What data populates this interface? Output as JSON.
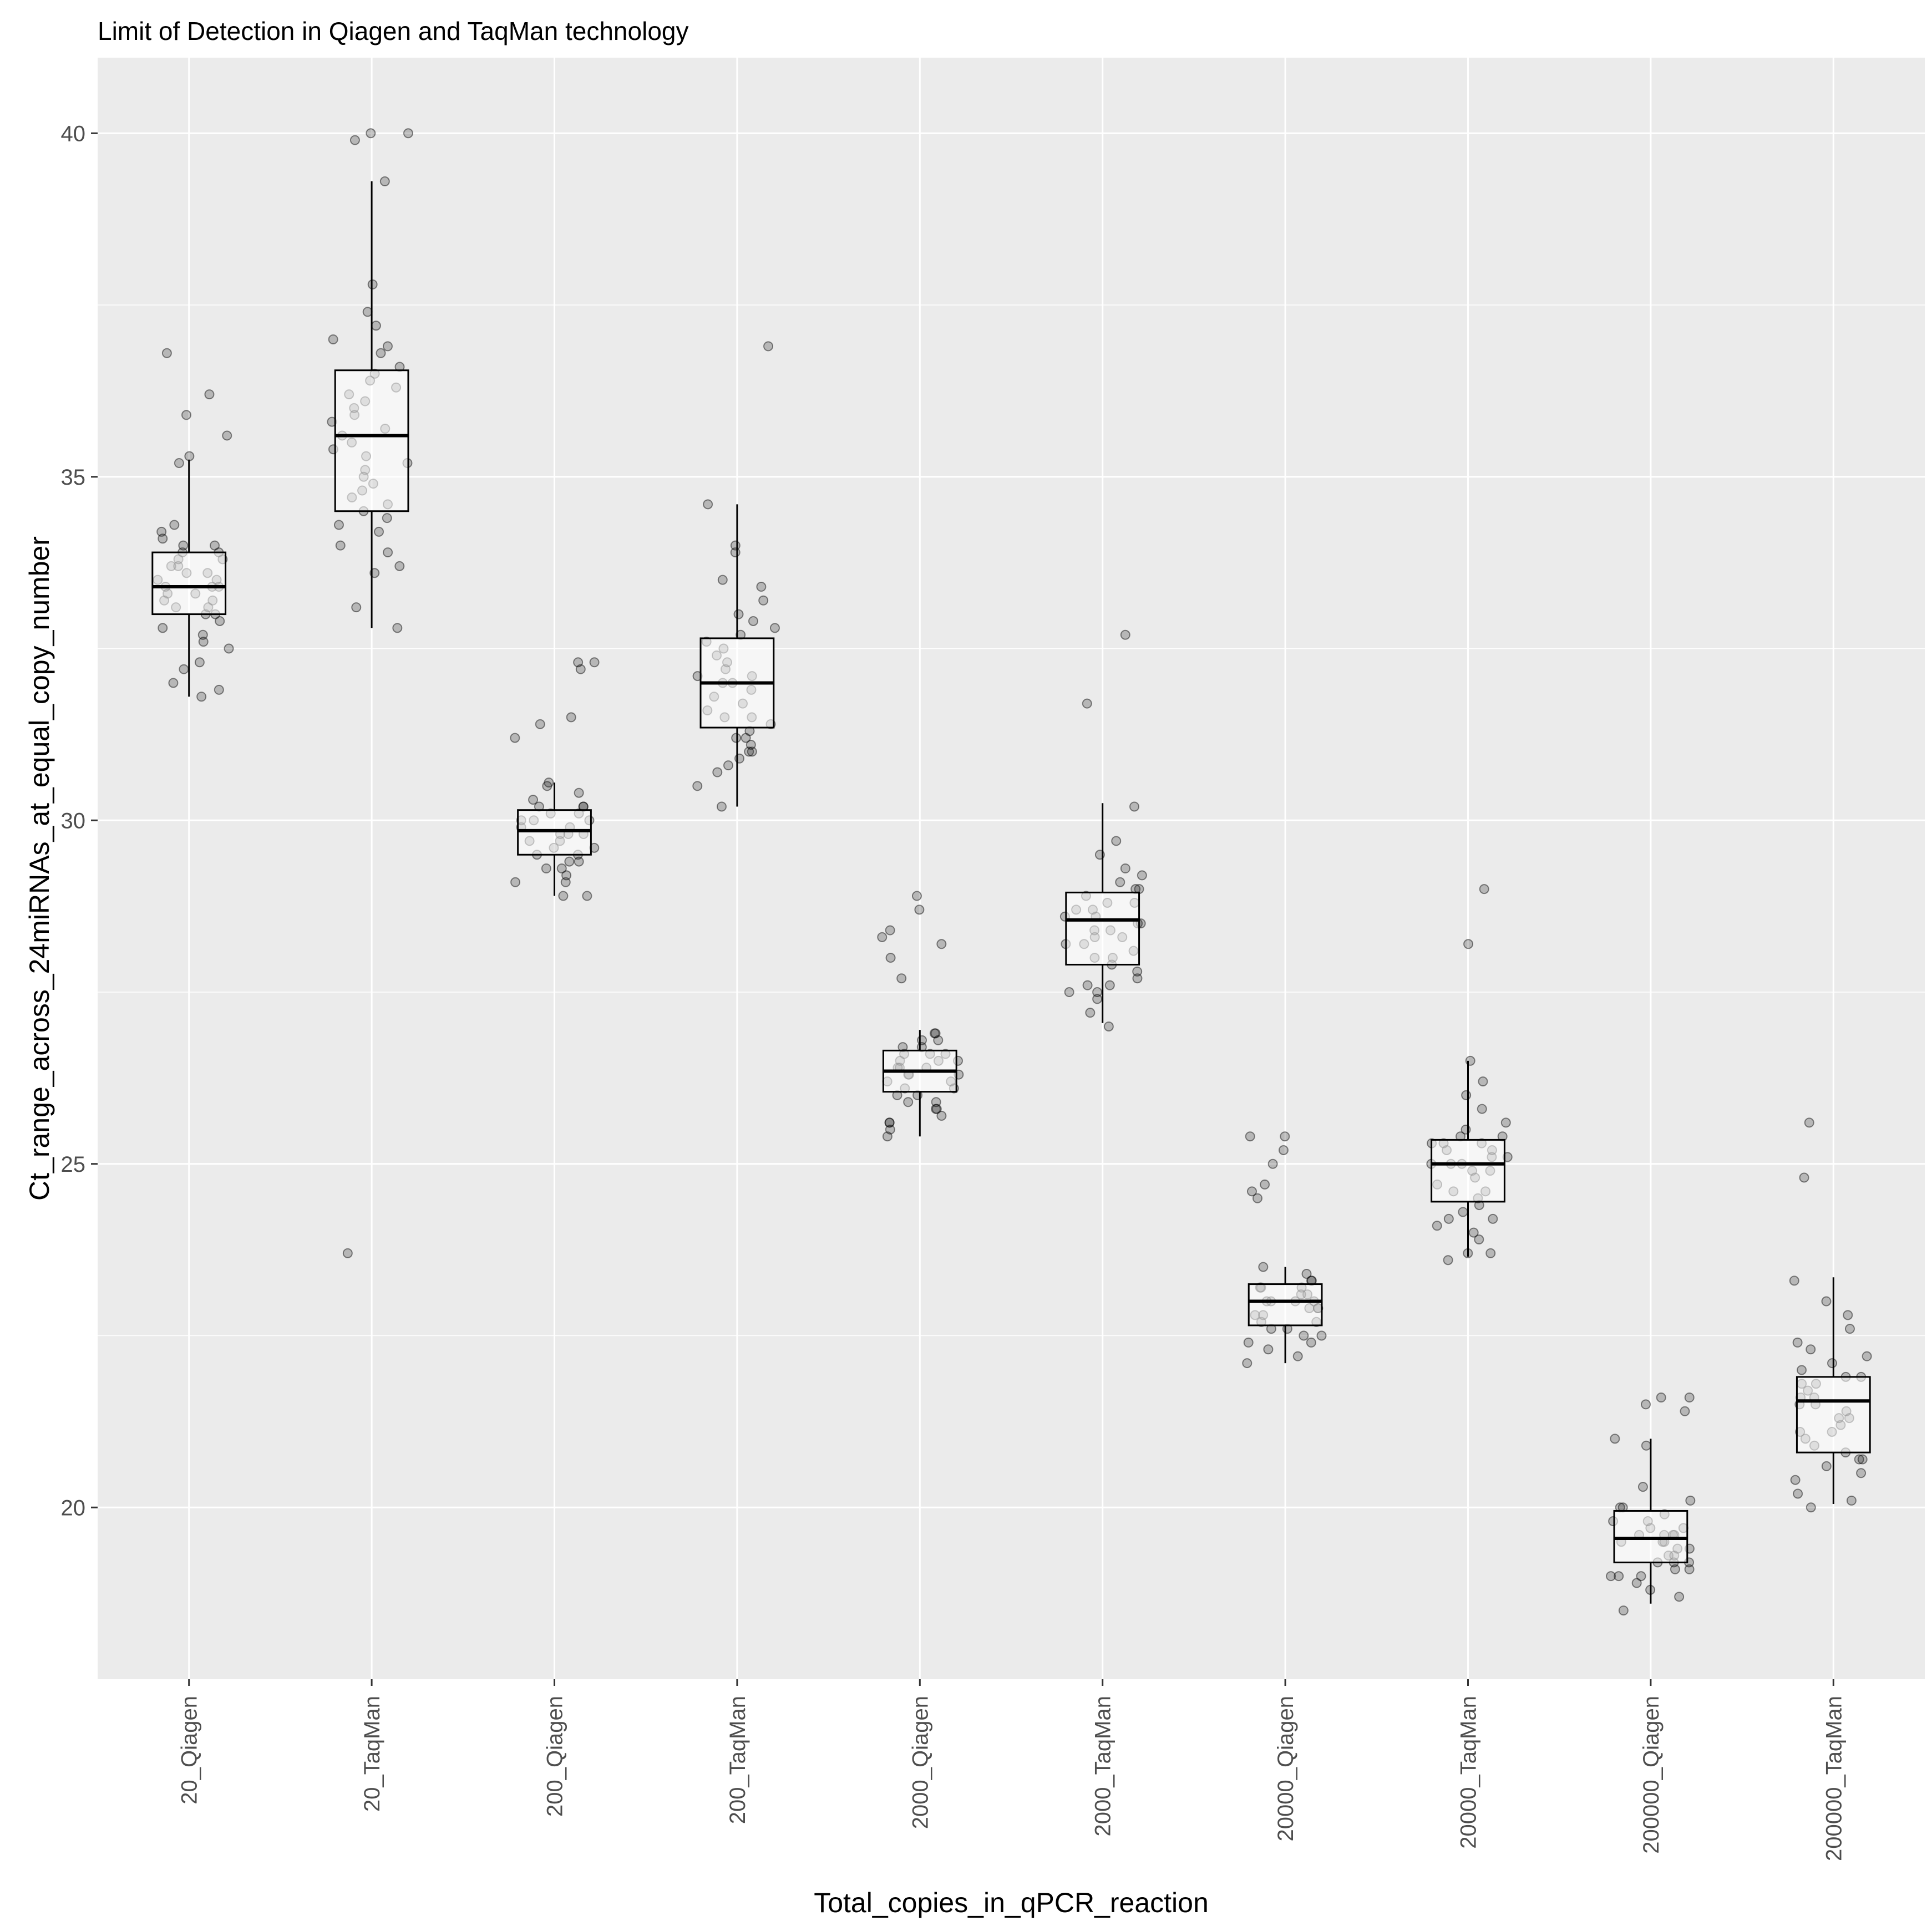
{
  "chart_data": {
    "type": "boxplot",
    "title": "Limit of Detection in Qiagen and TaqMan technology",
    "xlabel": "Total_copies_in_qPCR_reaction",
    "ylabel": "Ct_range_across_24miRNAs_at_equal_copy_number",
    "ylim": [
      17.5,
      41.1
    ],
    "yticks": [
      20,
      25,
      30,
      35,
      40
    ],
    "ytick_labels": [
      "20",
      "25",
      "30",
      "35",
      "40"
    ],
    "grid": true,
    "legend": "none",
    "colors": {
      "panel_background": "#ebebeb",
      "grid_line": "#ffffff",
      "point_fill": "#000000",
      "box_fill": "#ffffff",
      "box_outline": "#000000"
    },
    "categories": [
      "20_Qiagen",
      "20_TaqMan",
      "200_Qiagen",
      "200_TaqMan",
      "2000_Qiagen",
      "2000_TaqMan",
      "20000_Qiagen",
      "20000_TaqMan",
      "200000_Qiagen",
      "200000_TaqMan"
    ],
    "boxes": [
      {
        "category": "20_Qiagen",
        "whisker_low": 31.8,
        "q1": 33.0,
        "median": 33.4,
        "q3": 33.9,
        "whisker_high": 35.25,
        "outliers": [],
        "points": [
          31.8,
          32.0,
          32.3,
          32.5,
          32.6,
          32.7,
          32.8,
          32.9,
          33.0,
          33.0,
          33.1,
          33.1,
          33.2,
          33.2,
          33.3,
          33.3,
          33.4,
          33.4,
          33.4,
          33.5,
          33.5,
          33.6,
          33.6,
          33.7,
          33.7,
          33.8,
          33.8,
          33.9,
          33.9,
          34.0,
          34.0,
          34.1,
          34.2,
          34.3,
          35.2,
          35.3,
          35.6,
          35.9,
          36.2,
          36.8,
          32.2,
          31.9
        ]
      },
      {
        "category": "20_TaqMan",
        "whisker_low": 32.8,
        "q1": 34.5,
        "median": 35.6,
        "q3": 36.55,
        "whisker_high": 39.3,
        "outliers": [
          23.7
        ],
        "points": [
          32.8,
          33.1,
          33.6,
          33.7,
          33.9,
          34.0,
          34.2,
          34.3,
          34.4,
          34.5,
          34.6,
          34.7,
          34.8,
          35.0,
          35.1,
          35.2,
          35.3,
          35.4,
          35.5,
          35.6,
          35.7,
          35.8,
          35.9,
          36.0,
          36.1,
          36.2,
          36.3,
          36.4,
          36.5,
          36.6,
          36.8,
          36.9,
          37.0,
          37.2,
          37.4,
          37.8,
          39.3,
          39.9,
          40.0,
          40.0,
          23.7,
          34.9
        ]
      },
      {
        "category": "200_Qiagen",
        "whisker_low": 28.9,
        "q1": 29.5,
        "median": 29.85,
        "q3": 30.15,
        "whisker_high": 30.55,
        "outliers": [
          31.2,
          31.4,
          32.2,
          32.3,
          32.3
        ],
        "points": [
          28.9,
          28.9,
          29.1,
          29.1,
          29.2,
          29.3,
          29.4,
          29.4,
          29.5,
          29.5,
          29.6,
          29.6,
          29.7,
          29.7,
          29.8,
          29.8,
          29.8,
          29.9,
          29.9,
          30.0,
          30.0,
          30.0,
          30.1,
          30.1,
          30.2,
          30.2,
          30.3,
          30.4,
          30.5,
          30.55,
          31.2,
          31.4,
          31.5,
          32.2,
          32.3,
          32.3,
          29.3,
          30.2
        ]
      },
      {
        "category": "200_TaqMan",
        "whisker_low": 30.2,
        "q1": 31.35,
        "median": 32.0,
        "q3": 32.65,
        "whisker_high": 34.6,
        "outliers": [
          36.9
        ],
        "points": [
          30.2,
          30.5,
          30.7,
          30.9,
          31.0,
          31.0,
          31.1,
          31.2,
          31.3,
          31.4,
          31.5,
          31.6,
          31.7,
          31.8,
          31.9,
          32.0,
          32.0,
          32.1,
          32.2,
          32.3,
          32.4,
          32.5,
          32.6,
          32.7,
          32.8,
          32.9,
          33.0,
          33.2,
          33.4,
          33.5,
          33.9,
          34.0,
          34.6,
          36.9,
          31.5,
          32.1,
          31.2,
          30.8
        ]
      },
      {
        "category": "2000_Qiagen",
        "whisker_low": 25.4,
        "q1": 26.05,
        "median": 26.35,
        "q3": 26.65,
        "whisker_high": 26.95,
        "outliers": [
          27.7,
          28.0,
          28.2,
          28.3,
          28.4,
          28.7,
          28.9
        ],
        "points": [
          25.4,
          25.5,
          25.6,
          25.6,
          25.7,
          25.8,
          25.9,
          25.9,
          26.0,
          26.0,
          26.1,
          26.1,
          26.2,
          26.2,
          26.3,
          26.3,
          26.4,
          26.4,
          26.4,
          26.5,
          26.5,
          26.5,
          26.6,
          26.6,
          26.7,
          26.7,
          26.8,
          26.8,
          26.9,
          26.9,
          27.7,
          28.0,
          28.2,
          28.3,
          28.4,
          28.7,
          28.9,
          26.3,
          25.8,
          26.6
        ]
      },
      {
        "category": "2000_TaqMan",
        "whisker_low": 27.05,
        "q1": 27.9,
        "median": 28.55,
        "q3": 28.95,
        "whisker_high": 30.25,
        "outliers": [
          31.7,
          32.7
        ],
        "points": [
          27.0,
          27.2,
          27.4,
          27.5,
          27.6,
          27.6,
          27.7,
          27.8,
          27.9,
          28.0,
          28.1,
          28.2,
          28.2,
          28.3,
          28.4,
          28.5,
          28.5,
          28.6,
          28.6,
          28.7,
          28.7,
          28.8,
          28.9,
          29.0,
          29.1,
          29.2,
          29.3,
          29.5,
          29.7,
          30.2,
          31.7,
          32.7,
          28.4,
          28.0,
          28.8,
          27.5,
          29.0,
          28.3
        ]
      },
      {
        "category": "20000_Qiagen",
        "whisker_low": 22.1,
        "q1": 22.65,
        "median": 23.0,
        "q3": 23.25,
        "whisker_high": 23.5,
        "outliers": [
          24.5,
          24.6,
          24.7,
          25.0,
          25.2,
          25.4,
          25.4
        ],
        "points": [
          22.1,
          22.2,
          22.3,
          22.4,
          22.5,
          22.5,
          22.6,
          22.7,
          22.7,
          22.8,
          22.8,
          22.9,
          22.9,
          23.0,
          23.0,
          23.0,
          23.1,
          23.1,
          23.2,
          23.2,
          23.3,
          23.3,
          23.4,
          23.5,
          24.5,
          24.6,
          24.7,
          25.0,
          25.2,
          25.4,
          25.4,
          22.6,
          23.0,
          22.9,
          23.2,
          22.4
        ]
      },
      {
        "category": "20000_TaqMan",
        "whisker_low": 23.65,
        "q1": 24.45,
        "median": 25.0,
        "q3": 25.35,
        "whisker_high": 26.5,
        "outliers": [
          28.2,
          29.0
        ],
        "points": [
          23.6,
          23.7,
          23.7,
          23.9,
          24.0,
          24.1,
          24.2,
          24.3,
          24.4,
          24.5,
          24.6,
          24.7,
          24.8,
          24.9,
          24.9,
          25.0,
          25.0,
          25.1,
          25.1,
          25.2,
          25.2,
          25.3,
          25.3,
          25.4,
          25.4,
          25.5,
          25.6,
          25.8,
          26.0,
          26.2,
          26.5,
          28.2,
          29.0,
          24.6,
          25.0,
          24.2,
          25.3
        ]
      },
      {
        "category": "200000_Qiagen",
        "whisker_low": 18.6,
        "q1": 19.2,
        "median": 19.55,
        "q3": 19.95,
        "whisker_high": 21.0,
        "outliers": [
          21.4,
          21.5,
          21.6,
          21.6
        ],
        "points": [
          18.5,
          18.7,
          18.8,
          18.9,
          19.0,
          19.0,
          19.1,
          19.1,
          19.2,
          19.2,
          19.3,
          19.3,
          19.4,
          19.4,
          19.5,
          19.5,
          19.5,
          19.6,
          19.6,
          19.6,
          19.7,
          19.7,
          19.8,
          19.8,
          19.9,
          20.0,
          20.0,
          20.1,
          20.3,
          20.9,
          21.0,
          21.4,
          21.5,
          21.6,
          21.6,
          19.2,
          19.6,
          19.0
        ]
      },
      {
        "category": "200000_TaqMan",
        "whisker_low": 20.05,
        "q1": 20.8,
        "median": 21.55,
        "q3": 21.9,
        "whisker_high": 23.35,
        "outliers": [
          24.8,
          25.6
        ],
        "points": [
          20.0,
          20.1,
          20.2,
          20.4,
          20.5,
          20.6,
          20.7,
          20.8,
          20.9,
          21.0,
          21.1,
          21.2,
          21.3,
          21.4,
          21.5,
          21.5,
          21.6,
          21.6,
          21.7,
          21.8,
          21.8,
          21.9,
          22.0,
          22.1,
          22.2,
          22.4,
          22.6,
          22.8,
          23.0,
          23.3,
          24.8,
          25.6,
          21.3,
          20.7,
          21.9,
          22.3,
          21.1
        ]
      }
    ]
  }
}
